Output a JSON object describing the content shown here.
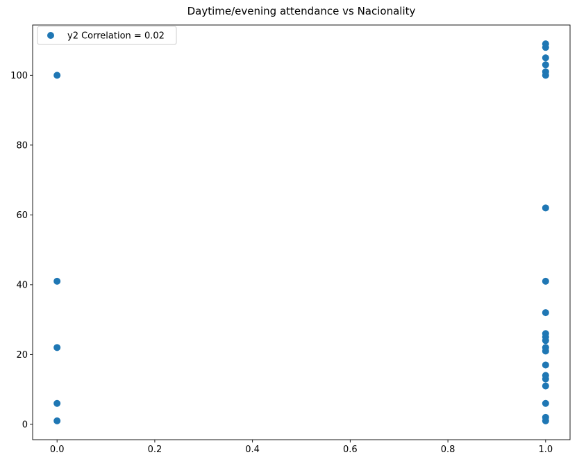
{
  "chart_data": {
    "type": "scatter",
    "title": "Daytime/evening attendance\t vs Nacionality",
    "xlabel": "",
    "ylabel": "",
    "xlim": [
      -0.05,
      1.05
    ],
    "ylim": [
      -4.4,
      114.4
    ],
    "x_ticks": [
      0.0,
      0.2,
      0.4,
      0.6,
      0.8,
      1.0
    ],
    "x_tick_labels": [
      "0.0",
      "0.2",
      "0.4",
      "0.6",
      "0.8",
      "1.0"
    ],
    "y_ticks": [
      0,
      20,
      40,
      60,
      80,
      100
    ],
    "y_tick_labels": [
      "0",
      "20",
      "40",
      "60",
      "80",
      "100"
    ],
    "grid": false,
    "legend_position": "top-left",
    "color": "#1f77b4",
    "series": [
      {
        "name": "y2 Correlation = 0.02",
        "points": [
          [
            0,
            1
          ],
          [
            0,
            6
          ],
          [
            0,
            22
          ],
          [
            0,
            41
          ],
          [
            0,
            100
          ],
          [
            1,
            1
          ],
          [
            1,
            2
          ],
          [
            1,
            6
          ],
          [
            1,
            11
          ],
          [
            1,
            13
          ],
          [
            1,
            14
          ],
          [
            1,
            17
          ],
          [
            1,
            21
          ],
          [
            1,
            22
          ],
          [
            1,
            24
          ],
          [
            1,
            25
          ],
          [
            1,
            26
          ],
          [
            1,
            32
          ],
          [
            1,
            41
          ],
          [
            1,
            62
          ],
          [
            1,
            100
          ],
          [
            1,
            101
          ],
          [
            1,
            103
          ],
          [
            1,
            105
          ],
          [
            1,
            108
          ],
          [
            1,
            109
          ]
        ]
      }
    ]
  }
}
